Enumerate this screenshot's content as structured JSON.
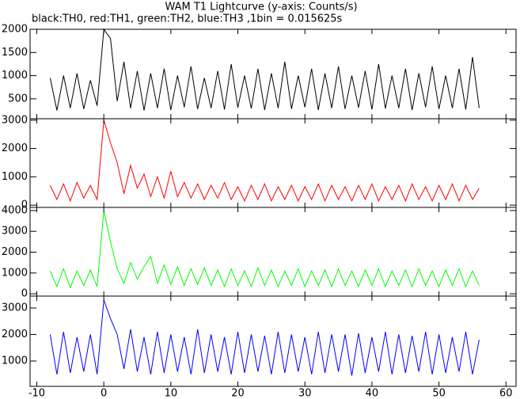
{
  "chart_data": [
    {
      "type": "line",
      "title": "WAM T1 Lightcurve (y-axis: Counts/s)",
      "subtitle": "black:TH0, red:TH1, green:TH2, blue:TH3 ,1bin = 0.015625s",
      "x": [
        -8,
        -7,
        -6,
        -5,
        -4,
        -3,
        -2,
        -1,
        0,
        1,
        2,
        3,
        4,
        5,
        6,
        7,
        8,
        9,
        10,
        11,
        12,
        13,
        14,
        15,
        16,
        17,
        18,
        19,
        20,
        21,
        22,
        23,
        24,
        25,
        26,
        27,
        28,
        29,
        30,
        31,
        32,
        33,
        34,
        35,
        36,
        37,
        38,
        39,
        40,
        41,
        42,
        43,
        44,
        45,
        46,
        47,
        48,
        49,
        50,
        51,
        52,
        53,
        54,
        55,
        56
      ],
      "series": [
        {
          "name": "TH0",
          "color": "#000000",
          "values": [
            950,
            250,
            1000,
            300,
            1050,
            280,
            900,
            350,
            2000,
            1800,
            450,
            1300,
            300,
            1100,
            250,
            1050,
            300,
            1150,
            260,
            1000,
            320,
            1200,
            280,
            950,
            300,
            1100,
            270,
            1250,
            310,
            1000,
            290,
            1150,
            260,
            1050,
            300,
            1300,
            280,
            1000,
            320,
            1150,
            260,
            1050,
            300,
            1200,
            280,
            1000,
            310,
            1100,
            270,
            1250,
            290,
            1000,
            300,
            1150,
            260,
            1050,
            320,
            1200,
            280,
            1000,
            300,
            1150,
            270,
            1400,
            300
          ]
        }
      ],
      "xlim": [
        -11,
        61.5
      ],
      "ylim": [
        70,
        2000
      ],
      "yticks": [
        500,
        1000,
        1500,
        2000
      ]
    },
    {
      "type": "line",
      "x": [
        -8,
        -7,
        -6,
        -5,
        -4,
        -3,
        -2,
        -1,
        0,
        1,
        2,
        3,
        4,
        5,
        6,
        7,
        8,
        9,
        10,
        11,
        12,
        13,
        14,
        15,
        16,
        17,
        18,
        19,
        20,
        21,
        22,
        23,
        24,
        25,
        26,
        27,
        28,
        29,
        30,
        31,
        32,
        33,
        34,
        35,
        36,
        37,
        38,
        39,
        40,
        41,
        42,
        43,
        44,
        45,
        46,
        47,
        48,
        49,
        50,
        51,
        52,
        53,
        54,
        55,
        56
      ],
      "series": [
        {
          "name": "TH1",
          "color": "#ff0000",
          "values": [
            700,
            200,
            750,
            150,
            800,
            250,
            700,
            200,
            3000,
            2200,
            1500,
            400,
            1400,
            600,
            1100,
            300,
            1000,
            250,
            1200,
            300,
            800,
            250,
            750,
            200,
            700,
            250,
            800,
            200,
            650,
            150,
            700,
            200,
            750,
            150,
            650,
            200,
            700,
            150,
            650,
            200,
            750,
            150,
            700,
            200,
            650,
            150,
            700,
            200,
            750,
            150,
            650,
            200,
            700,
            150,
            750,
            200,
            650,
            150,
            700,
            200,
            750,
            150,
            700,
            200,
            600
          ]
        }
      ],
      "xlim": [
        -11,
        61.5
      ],
      "ylim": [
        -80,
        3050
      ],
      "yticks": [
        0,
        1000,
        2000,
        3000
      ]
    },
    {
      "type": "line",
      "x": [
        -8,
        -7,
        -6,
        -5,
        -4,
        -3,
        -2,
        -1,
        0,
        1,
        2,
        3,
        4,
        5,
        6,
        7,
        8,
        9,
        10,
        11,
        12,
        13,
        14,
        15,
        16,
        17,
        18,
        19,
        20,
        21,
        22,
        23,
        24,
        25,
        26,
        27,
        28,
        29,
        30,
        31,
        32,
        33,
        34,
        35,
        36,
        37,
        38,
        39,
        40,
        41,
        42,
        43,
        44,
        45,
        46,
        47,
        48,
        49,
        50,
        51,
        52,
        53,
        54,
        55,
        56
      ],
      "series": [
        {
          "name": "TH2",
          "color": "#00ff00",
          "values": [
            1100,
            350,
            1200,
            300,
            1100,
            400,
            1150,
            350,
            4000,
            2500,
            1200,
            500,
            1500,
            700,
            1300,
            1800,
            500,
            1400,
            450,
            1300,
            400,
            1200,
            450,
            1250,
            400,
            1150,
            350,
            1200,
            400,
            1100,
            350,
            1250,
            400,
            1150,
            350,
            1100,
            400,
            1200,
            350,
            1100,
            400,
            1150,
            350,
            1200,
            400,
            1100,
            350,
            1150,
            400,
            1200,
            350,
            1100,
            400,
            1150,
            350,
            1200,
            400,
            1100,
            350,
            1150,
            400,
            1200,
            350,
            1100,
            400
          ]
        }
      ],
      "xlim": [
        -11,
        61.5
      ],
      "ylim": [
        -110,
        4150
      ],
      "yticks": [
        0,
        1000,
        2000,
        3000,
        4000
      ]
    },
    {
      "type": "line",
      "x": [
        -8,
        -7,
        -6,
        -5,
        -4,
        -3,
        -2,
        -1,
        0,
        1,
        2,
        3,
        4,
        5,
        6,
        7,
        8,
        9,
        10,
        11,
        12,
        13,
        14,
        15,
        16,
        17,
        18,
        19,
        20,
        21,
        22,
        23,
        24,
        25,
        26,
        27,
        28,
        29,
        30,
        31,
        32,
        33,
        34,
        35,
        36,
        37,
        38,
        39,
        40,
        41,
        42,
        43,
        44,
        45,
        46,
        47,
        48,
        49,
        50,
        51,
        52,
        53,
        54,
        55,
        56
      ],
      "series": [
        {
          "name": "TH3",
          "color": "#0000ff",
          "values": [
            2000,
            500,
            2100,
            550,
            1900,
            600,
            2000,
            500,
            3300,
            2600,
            2000,
            700,
            2200,
            600,
            1900,
            500,
            2100,
            550,
            2000,
            600,
            1900,
            500,
            2200,
            550,
            2000,
            600,
            1900,
            500,
            2100,
            550,
            2000,
            600,
            1950,
            500,
            2100,
            550,
            2000,
            600,
            1900,
            500,
            2100,
            550,
            2000,
            600,
            2000,
            450,
            2050,
            550,
            1900,
            600,
            2100,
            500,
            2000,
            550,
            1950,
            600,
            2100,
            500,
            2000,
            550,
            1900,
            600,
            2100,
            500,
            1800
          ]
        }
      ],
      "xlim": [
        -11,
        61.5
      ],
      "ylim": [
        45,
        3450
      ],
      "yticks": [
        1000,
        2000,
        3000
      ],
      "xticks": [
        -10,
        0,
        10,
        20,
        30,
        40,
        50,
        60
      ]
    }
  ]
}
